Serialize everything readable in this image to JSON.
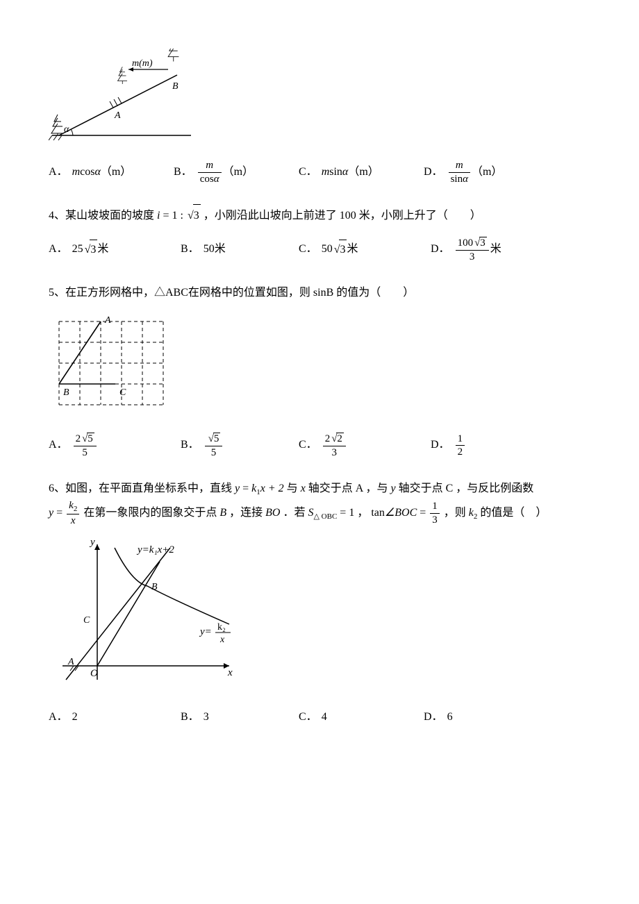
{
  "q3": {
    "figure": {
      "label_m": "m(m)",
      "label_A": "A",
      "label_B": "B",
      "label_alpha": "α",
      "colors": {
        "stroke": "#000000",
        "bg": "#ffffff"
      }
    },
    "options": {
      "A_label": "A．",
      "A_pre": "m",
      "A_trig": "cos",
      "A_var": "α",
      "A_unit": "（m）",
      "B_label": "B．",
      "B_num": "m",
      "B_den_trig": "cos",
      "B_den_var": "α",
      "B_unit": "（m）",
      "C_label": "C．",
      "C_pre": "m",
      "C_trig": "sin",
      "C_var": "α",
      "C_unit": "（m）",
      "D_label": "D．",
      "D_num": "m",
      "D_den_trig": "sin",
      "D_den_var": "α",
      "D_unit": "（m）"
    }
  },
  "q4": {
    "text_pre": "4、某山坡坡面的坡度",
    "eq_lhs": "i",
    "eq_mid": " = 1 : ",
    "ratio_rad": "3",
    "text_post": "，小刚沿此山坡向上前进了 100 米，小刚上升了（　　）",
    "options": {
      "A_label": "A．",
      "A_coef": "25",
      "A_rad": "3",
      "A_unit": " 米",
      "B_label": "B．",
      "B_val": "50",
      "B_unit": " 米",
      "C_label": "C．",
      "C_coef": "50",
      "C_rad": "3",
      "C_unit": " 米",
      "D_label": "D．",
      "D_num_coef": "100",
      "D_num_rad": "3",
      "D_den": "3",
      "D_unit": " 米"
    }
  },
  "q5": {
    "text": "5、在正方形网格中，△ABC在网格中的位置如图，则 sinB 的值为（　　）",
    "figure": {
      "stroke": "#000000",
      "dash": "4,3",
      "cols": 5,
      "rows": 4,
      "cell": 30,
      "label_A": "A",
      "label_B": "B",
      "label_C": "C",
      "A_pos": [
        2,
        0
      ],
      "B_pos": [
        0,
        3
      ],
      "C_pos": [
        2.7,
        3
      ]
    },
    "options": {
      "A_label": "A．",
      "A_num_coef": "2",
      "A_num_rad": "5",
      "A_den": "5",
      "B_label": "B．",
      "B_num_rad": "5",
      "B_den": "5",
      "C_label": "C．",
      "C_num_coef": "2",
      "C_num_rad": "2",
      "C_den": "3",
      "D_label": "D．",
      "D_num": "1",
      "D_den": "2"
    }
  },
  "q6": {
    "text_1a": "6、如图，在平面直角坐标系中，直线 ",
    "line_eq_y": "y",
    "line_eq_eq": " = ",
    "line_eq_k1": "k",
    "line_eq_k1sub": "1",
    "line_eq_rest": "x + 2",
    "text_1b": " 与 ",
    "x_axis": "x",
    "text_1c": " 轴交于点 A ，与 ",
    "y_axis": "y",
    "text_1d": " 轴交于点 C ，与反比例函数",
    "hyper_eq_y": "y",
    "hyper_eq_eq": " = ",
    "hyper_num": "k",
    "hyper_num_sub": "2",
    "hyper_den": "x",
    "text_2a": " 在第一象限内的图象交于点 ",
    "pt_B": "B",
    "text_2b": " ，连接 ",
    "seg_BO": "BO",
    "text_2c": " ．若 ",
    "S_sym": "S",
    "S_sub": "△ OBC",
    "S_eq": " = 1",
    "text_2d": " ， ",
    "tan_fn": "tan",
    "tan_ang": "∠BOC",
    "tan_eq": " = ",
    "tan_num": "1",
    "tan_den": "3",
    "text_2e": " ，则 ",
    "ask_k2": "k",
    "ask_k2_sub": "2",
    "text_2f": " 的值是（　）",
    "figure": {
      "stroke": "#000000",
      "label_y": "y",
      "label_x": "x",
      "label_O": "O",
      "label_A": "A",
      "label_B": "B",
      "label_C": "C",
      "label_line": "y=k₁x+2",
      "label_curve_y": "y=",
      "label_curve_num": "k₂",
      "label_curve_den": "x"
    },
    "options": {
      "A_label": "A．",
      "A_val": "2",
      "B_label": "B．",
      "B_val": "3",
      "C_label": "C．",
      "C_val": "4",
      "D_label": "D．",
      "D_val": "6"
    }
  }
}
